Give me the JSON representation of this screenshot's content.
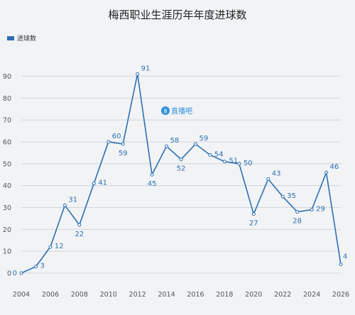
{
  "chart_data": {
    "type": "line",
    "title": "梅西职业生涯历年年度进球数",
    "legend": {
      "label": "进球数",
      "position": "top-left",
      "color": "#2d70b3"
    },
    "x_ticks": [
      "2004",
      "2006",
      "2008",
      "2010",
      "2012",
      "2014",
      "2016",
      "2018",
      "2020",
      "2022",
      "2024",
      "2026"
    ],
    "y_ticks": [
      "0",
      "10",
      "20",
      "30",
      "40",
      "50",
      "60",
      "70",
      "80",
      "90"
    ],
    "xlim": [
      2004,
      2026
    ],
    "ylim": [
      0,
      95
    ],
    "grid": true,
    "series": [
      {
        "x": [
          2004,
          2005,
          2006,
          2007,
          2008,
          2009,
          2010,
          2011,
          2012,
          2013,
          2014,
          2015,
          2016,
          2017,
          2018,
          2019,
          2020,
          2021,
          2022,
          2023,
          2024,
          2025,
          2026
        ],
        "values": [
          0,
          3,
          12,
          31,
          22,
          41,
          60,
          59,
          91,
          45,
          58,
          52,
          59,
          54,
          51,
          50,
          27,
          43,
          35,
          28,
          29,
          46,
          4
        ],
        "labels": [
          "0",
          "3",
          "12",
          "31",
          "22",
          "41",
          "60",
          "59",
          "91",
          "45",
          "58",
          "52",
          "59",
          "54",
          "51",
          "50",
          "27",
          "43",
          "35",
          "28",
          "29",
          "46",
          "4"
        ]
      }
    ]
  },
  "watermark": {
    "text": "直播吧",
    "icon": "logo-icon"
  }
}
